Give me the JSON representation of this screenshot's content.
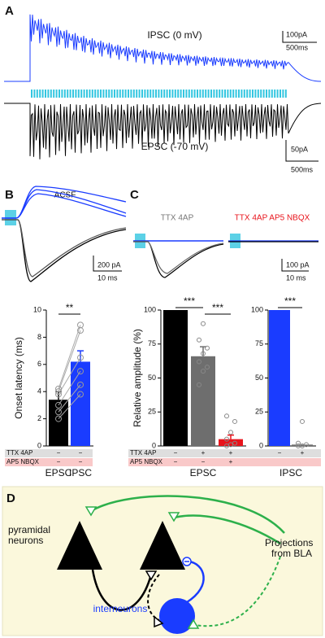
{
  "panel_a": {
    "label": "A",
    "ipsc_label": "IPSC (0 mV)",
    "ipsc_scale": [
      "100pA",
      "500ms"
    ],
    "epsc_label": "EPSC (-70 mV)",
    "epsc_scale": [
      "50pA",
      "500ms"
    ]
  },
  "panel_b": {
    "label": "B",
    "condition": "ACSF",
    "scale": [
      "200 pA",
      "10 ms"
    ]
  },
  "panel_c": {
    "label": "C",
    "conditions": [
      "TTX 4AP",
      "TTX 4AP AP5 NBQX"
    ],
    "scale": [
      "100 pA",
      "10 ms"
    ]
  },
  "panel_d": {
    "label": "D",
    "pyramidal": [
      "pyramidal",
      "neurons"
    ],
    "projections": [
      "Projections",
      "from BLA"
    ],
    "interneurons": "interneurons"
  },
  "chart_data": [
    {
      "type": "bar",
      "ylabel": "Onset latency (ms)",
      "categories": [
        "EPSC",
        "IPSC"
      ],
      "values": [
        3.4,
        6.2
      ],
      "errors": [
        0.6,
        0.8
      ],
      "colors": [
        "#000000",
        "#1a3cff"
      ],
      "points": [
        [
          2.0,
          2.5,
          3.0,
          3.8,
          4.0,
          4.2
        ],
        [
          3.8,
          4.5,
          5.5,
          6.5,
          8.5,
          8.9
        ]
      ],
      "paired": true,
      "ylim": [
        0,
        10
      ],
      "yticks": [
        0,
        2,
        4,
        6,
        8,
        10
      ],
      "significance": [
        "**"
      ],
      "conditions": [
        {
          "label": "TTX 4AP",
          "marks": [
            "−",
            "−"
          ]
        },
        {
          "label": "AP5 NBQX",
          "marks": [
            "−",
            "−"
          ]
        }
      ]
    },
    {
      "type": "bar",
      "ylabel": "Relative amplitude (%)",
      "xlabel": "EPSC",
      "categories": [
        null,
        null,
        null
      ],
      "values": [
        100,
        66,
        5
      ],
      "errors": [
        0,
        7,
        3
      ],
      "colors": [
        "#000000",
        "#6e6e6e",
        "#e8141c"
      ],
      "points": [
        [],
        [
          45,
          55,
          58,
          62,
          68,
          72,
          78,
          90
        ],
        [
          0,
          1,
          2,
          5,
          10,
          18,
          22
        ]
      ],
      "ylim": [
        0,
        100
      ],
      "yticks": [
        0,
        25,
        50,
        75,
        100
      ],
      "significance": [
        "***",
        "***"
      ],
      "conditions": [
        {
          "label": "TTX 4AP",
          "marks": [
            "−",
            "+",
            "+"
          ]
        },
        {
          "label": "AP5 NBQX",
          "marks": [
            "−",
            "−",
            "+"
          ]
        }
      ]
    },
    {
      "type": "bar",
      "xlabel": "IPSC",
      "categories": [
        null,
        null
      ],
      "values": [
        100,
        1
      ],
      "colors": [
        "#1a3cff",
        "#6e6e6e"
      ],
      "points": [
        [],
        [
          0,
          0,
          1,
          2,
          18
        ]
      ],
      "ylim": [
        0,
        100
      ],
      "yticks": [
        0,
        25,
        50,
        75,
        100
      ],
      "significance": [
        "***"
      ],
      "conditions": [
        {
          "marks": [
            "−",
            "+"
          ]
        },
        {
          "marks": []
        }
      ]
    }
  ]
}
